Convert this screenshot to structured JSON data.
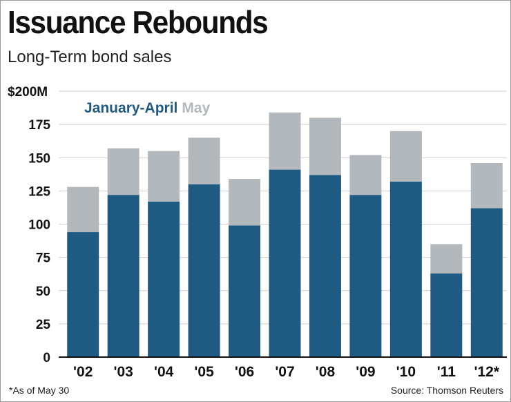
{
  "chart_data": {
    "type": "bar",
    "stacked": true,
    "title": "Issuance Rebounds",
    "subtitle": "Long-Term bond sales",
    "top_tick_label": "$200M",
    "ylim": [
      0,
      200
    ],
    "yticks": [
      0,
      25,
      50,
      75,
      100,
      125,
      150,
      175,
      200
    ],
    "grid": true,
    "legend_position": "top-left",
    "categories": [
      "'02",
      "'03",
      "'04",
      "'05",
      "'06",
      "'07",
      "'08",
      "'09",
      "'10",
      "'11",
      "'12*"
    ],
    "series": [
      {
        "name": "January-April",
        "color": "#1f5a82",
        "values": [
          94,
          122,
          117,
          130,
          99,
          141,
          137,
          122,
          132,
          63,
          112
        ]
      },
      {
        "name": "May",
        "color": "#b3b8bd",
        "values": [
          34,
          35,
          38,
          35,
          35,
          43,
          43,
          30,
          38,
          22,
          34
        ]
      }
    ],
    "footnote": "*As of May 30",
    "source": "Source: Thomson Reuters"
  }
}
